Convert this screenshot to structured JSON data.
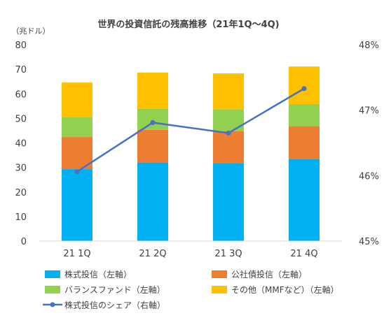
{
  "chart_data": {
    "type": "bar",
    "title": "世界の投資信託の残高推移（21年1Q〜4Q)",
    "y_unit_label": "（兆ドル）",
    "categories": [
      "21 1Q",
      "21 2Q",
      "21 3Q",
      "21 4Q"
    ],
    "ylim": [
      0,
      80
    ],
    "yticks": [
      "0",
      "10",
      "20",
      "30",
      "40",
      "50",
      "60",
      "70",
      "80"
    ],
    "y2lim": [
      45,
      48
    ],
    "y2ticks": [
      "45%",
      "46%",
      "47%",
      "48%"
    ],
    "stacked": true,
    "series": [
      {
        "name": "株式投信（左軸）",
        "type": "bar",
        "axis": "left",
        "color": "#00B0F0",
        "values": [
          29.3,
          32.0,
          31.6,
          33.3
        ]
      },
      {
        "name": "公社債投信（左軸）",
        "type": "bar",
        "axis": "left",
        "color": "#ED7D31",
        "values": [
          13.1,
          13.3,
          13.2,
          13.5
        ]
      },
      {
        "name": "バランスファンド（左軸）",
        "type": "bar",
        "axis": "left",
        "color": "#92D050",
        "values": [
          8.0,
          8.6,
          8.9,
          9.0
        ]
      },
      {
        "name": "その他（MMFなど）（左軸）",
        "type": "bar",
        "axis": "left",
        "color": "#FFC000",
        "values": [
          14.2,
          14.7,
          14.6,
          15.3
        ]
      },
      {
        "name": "株式投信のシェア（右軸）",
        "type": "line",
        "axis": "right",
        "color": "#4472C4",
        "values": [
          46.06,
          46.81,
          46.65,
          47.33
        ]
      }
    ],
    "grid": false,
    "legend_position": "bottom"
  }
}
